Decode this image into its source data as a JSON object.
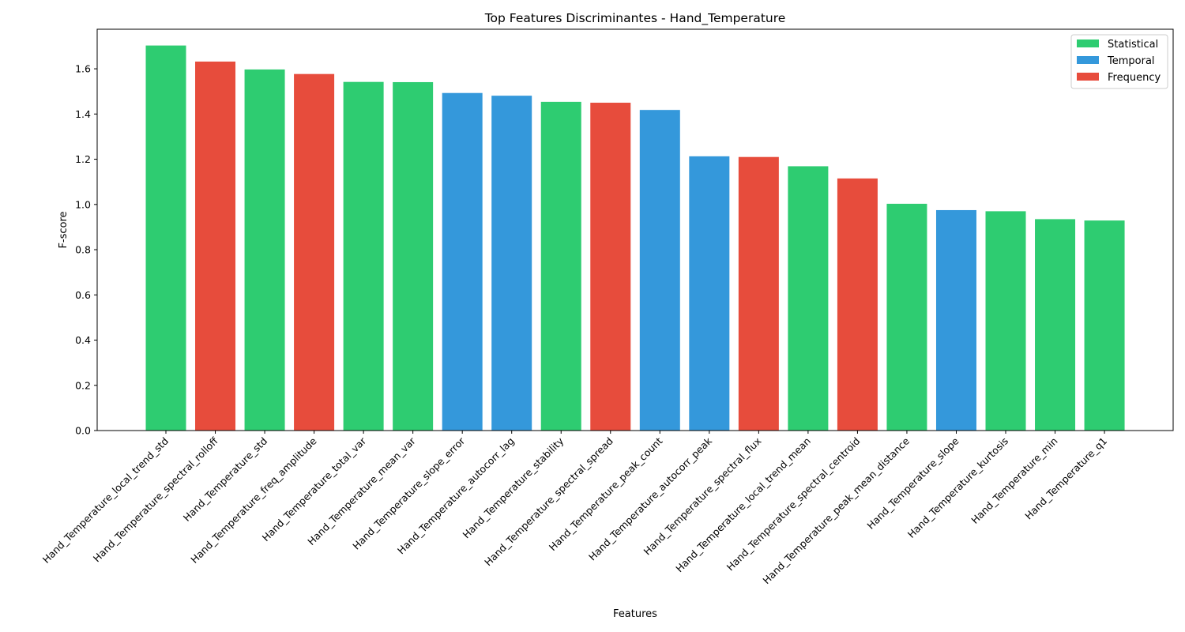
{
  "chart_data": {
    "type": "bar",
    "title": "Top Features Discriminantes - Hand_Temperature",
    "xlabel": "Features",
    "ylabel": "F-score",
    "ylim": [
      0,
      1.775
    ],
    "yticks": [
      0.0,
      0.2,
      0.4,
      0.6,
      0.8,
      1.0,
      1.2,
      1.4,
      1.6
    ],
    "ytick_labels": [
      "0.0",
      "0.2",
      "0.4",
      "0.6",
      "0.8",
      "1.0",
      "1.2",
      "1.4",
      "1.6"
    ],
    "grid": false,
    "legend_position": "top-right",
    "colors": {
      "Statistical": "#2ecc71",
      "Temporal": "#3498db",
      "Frequency": "#e74c3c"
    },
    "legend": [
      {
        "label": "Statistical",
        "color": "#2ecc71"
      },
      {
        "label": "Temporal",
        "color": "#3498db"
      },
      {
        "label": "Frequency",
        "color": "#e74c3c"
      }
    ],
    "categories": [
      "Hand_Temperature_local_trend_std",
      "Hand_Temperature_spectral_rolloff",
      "Hand_Temperature_std",
      "Hand_Temperature_freq_amplitude",
      "Hand_Temperature_total_var",
      "Hand_Temperature_mean_var",
      "Hand_Temperature_slope_error",
      "Hand_Temperature_autocorr_lag",
      "Hand_Temperature_stability",
      "Hand_Temperature_spectral_spread",
      "Hand_Temperature_peak_count",
      "Hand_Temperature_autocorr_peak",
      "Hand_Temperature_spectral_flux",
      "Hand_Temperature_local_trend_mean",
      "Hand_Temperature_spectral_centroid",
      "Hand_Temperature_peak_mean_distance",
      "Hand_Temperature_slope",
      "Hand_Temperature_kurtosis",
      "Hand_Temperature_min",
      "Hand_Temperature_q1"
    ],
    "values": [
      1.703,
      1.632,
      1.597,
      1.577,
      1.542,
      1.541,
      1.493,
      1.481,
      1.454,
      1.45,
      1.418,
      1.213,
      1.21,
      1.169,
      1.115,
      1.003,
      0.975,
      0.97,
      0.935,
      0.929
    ],
    "groups": [
      "Statistical",
      "Frequency",
      "Statistical",
      "Frequency",
      "Statistical",
      "Statistical",
      "Temporal",
      "Temporal",
      "Statistical",
      "Frequency",
      "Temporal",
      "Temporal",
      "Frequency",
      "Statistical",
      "Frequency",
      "Statistical",
      "Temporal",
      "Statistical",
      "Statistical",
      "Statistical"
    ]
  }
}
